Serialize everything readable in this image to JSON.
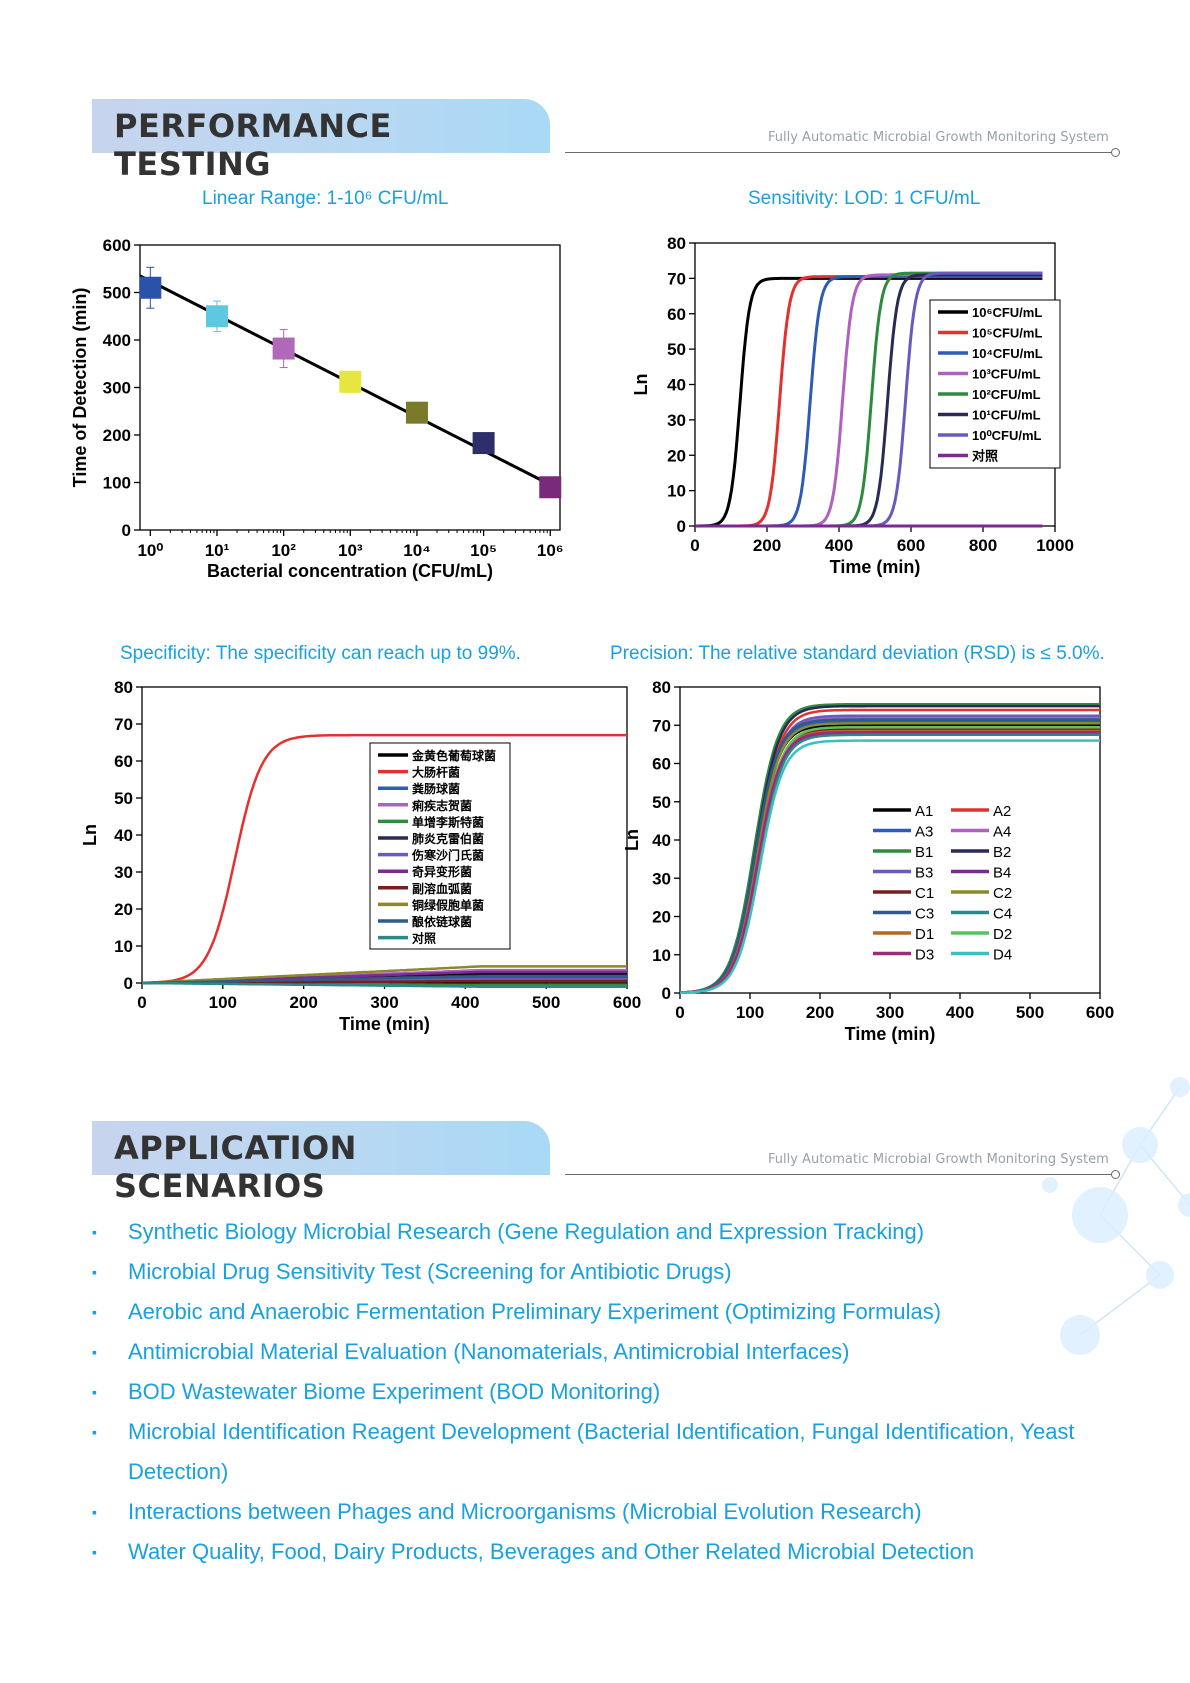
{
  "sections": {
    "performance": {
      "title": "PERFORMANCE TESTING",
      "subtitle": "Fully Automatic Microbial Growth Monitoring System"
    },
    "application": {
      "title": "APPLICATION SCENARIOS",
      "subtitle": "Fully Automatic Microbial Growth Monitoring System"
    }
  },
  "chart_titles": {
    "linear": "Linear Range: 1-10⁶ CFU/mL",
    "sensitivity": "Sensitivity: LOD: 1 CFU/mL",
    "specificity": "Specificity: The specificity can reach up to 99%.",
    "precision": "Precision: The relative standard deviation (RSD) is ≤ 5.0%."
  },
  "applications": [
    "Synthetic Biology Microbial Research (Gene Regulation and Expression Tracking)",
    "Microbial Drug Sensitivity Test (Screening for Antibiotic Drugs)",
    "Aerobic and Anaerobic Fermentation Preliminary Experiment (Optimizing Formulas)",
    "Antimicrobial Material Evaluation (Nanomaterials, Antimicrobial Interfaces)",
    "BOD Wastewater Biome Experiment (BOD Monitoring)",
    "Microbial Identification Reagent Development (Bacterial Identification, Fungal Identification, Yeast Detection)",
    "Interactions between Phages and Microorganisms (Microbial Evolution Research)",
    "Water Quality, Food, Dairy Products, Beverages and Other Related Microbial Detection"
  ],
  "chart_data": [
    {
      "id": "linear",
      "type": "scatter",
      "xscale": "log",
      "xlabel": "Bacterial concentration (CFU/mL)",
      "ylabel": "Time of Detection (min)",
      "xlim": [
        0.7,
        1400000.0
      ],
      "ylim": [
        0,
        600
      ],
      "xticks": [
        "10⁰",
        "10¹",
        "10²",
        "10³",
        "10⁴",
        "10⁵",
        "10⁶"
      ],
      "yticks": [
        0,
        100,
        200,
        300,
        400,
        500,
        600
      ],
      "points": [
        {
          "x": 1,
          "y": 510,
          "err": 43,
          "color": "#2a52a8"
        },
        {
          "x": 10,
          "y": 450,
          "err": 32,
          "color": "#5ec8de"
        },
        {
          "x": 100,
          "y": 382,
          "err": 40,
          "color": "#b068b8"
        },
        {
          "x": 1000,
          "y": 312,
          "err": 22,
          "color": "#e6e640"
        },
        {
          "x": 10000,
          "y": 247,
          "err": 0,
          "color": "#7a7a2a"
        },
        {
          "x": 100000,
          "y": 183,
          "err": 0,
          "color": "#2e2e6a"
        },
        {
          "x": 1000000,
          "y": 90,
          "err": 0,
          "color": "#7a2a7a"
        }
      ],
      "fit": {
        "x": [
          0.7,
          1400000.0
        ],
        "y": [
          535,
          85
        ]
      }
    },
    {
      "id": "sensitivity",
      "type": "line",
      "xlabel": "Time (min)",
      "ylabel": "Ln",
      "xlim": [
        0,
        1000
      ],
      "ylim": [
        0,
        80
      ],
      "xticks": [
        0,
        200,
        400,
        600,
        800,
        1000
      ],
      "yticks": [
        0,
        10,
        20,
        30,
        40,
        50,
        60,
        70,
        80
      ],
      "legend": "right",
      "series": [
        {
          "name": "10⁶CFU/mL",
          "color": "#000000",
          "mid": 125,
          "plateau": 70
        },
        {
          "name": "10⁵CFU/mL",
          "color": "#e53030",
          "mid": 235,
          "plateau": 70.5
        },
        {
          "name": "10⁴CFU/mL",
          "color": "#2e5bb5",
          "mid": 320,
          "plateau": 70.5
        },
        {
          "name": "10³CFU/mL",
          "color": "#b060c0",
          "mid": 410,
          "plateau": 71
        },
        {
          "name": "10²CFU/mL",
          "color": "#2e8b3e",
          "mid": 490,
          "plateau": 71.5
        },
        {
          "name": "10¹CFU/mL",
          "color": "#2a2a55",
          "mid": 535,
          "plateau": 71
        },
        {
          "name": "10⁰CFU/mL",
          "color": "#6a5ac0",
          "mid": 585,
          "plateau": 71.5
        },
        {
          "name": "对照",
          "color": "#7a2a90",
          "mid": null,
          "plateau": 0
        }
      ]
    },
    {
      "id": "specificity",
      "type": "line",
      "xlabel": "Time (min)",
      "ylabel": "Ln",
      "xlim": [
        0,
        600
      ],
      "ylim": [
        0,
        80
      ],
      "xticks": [
        0,
        100,
        200,
        300,
        400,
        500,
        600
      ],
      "yticks": [
        0,
        10,
        20,
        30,
        40,
        50,
        60,
        70,
        80
      ],
      "legend": "center-right",
      "series": [
        {
          "name": "金黄色葡萄球菌",
          "color": "#000000",
          "end": 2.5
        },
        {
          "name": "大肠杆菌",
          "color": "#e53030",
          "mid": 115,
          "plateau": 67
        },
        {
          "name": "粪肠球菌",
          "color": "#2e5bb5",
          "end": 1.5
        },
        {
          "name": "痢疾志贺菌",
          "color": "#b060c0",
          "end": 3.5
        },
        {
          "name": "单增李斯特菌",
          "color": "#2e8b3e",
          "end": -0.5
        },
        {
          "name": "肺炎克雷伯菌",
          "color": "#2a2a55",
          "end": 2
        },
        {
          "name": "伤寒沙门氏菌",
          "color": "#6a5ac0",
          "end": 1
        },
        {
          "name": "奇异变形菌",
          "color": "#7a2a90",
          "end": 3
        },
        {
          "name": "副溶血弧菌",
          "color": "#7a1f1f",
          "end": 0.5
        },
        {
          "name": "铜绿假胞单菌",
          "color": "#8a8a2a",
          "end": 4.5
        },
        {
          "name": "酿依链球菌",
          "color": "#2e5b8a",
          "end": 1.8
        },
        {
          "name": "对照",
          "color": "#2a8a8a",
          "end": -1
        }
      ]
    },
    {
      "id": "precision",
      "type": "line",
      "xlabel": "Time (min)",
      "ylabel": "Ln",
      "xlim": [
        0,
        600
      ],
      "ylim": [
        0,
        80
      ],
      "xticks": [
        0,
        100,
        200,
        300,
        400,
        500,
        600
      ],
      "yticks": [
        0,
        10,
        20,
        30,
        40,
        50,
        60,
        70,
        80
      ],
      "legend": "center-right",
      "series": [
        {
          "name": "A1",
          "color": "#000000",
          "mid": 108,
          "plateau": 70
        },
        {
          "name": "A2",
          "color": "#e53030",
          "mid": 110,
          "plateau": 74
        },
        {
          "name": "A3",
          "color": "#2e5bb5",
          "mid": 107,
          "plateau": 71
        },
        {
          "name": "A4",
          "color": "#b060c0",
          "mid": 109,
          "plateau": 72
        },
        {
          "name": "B1",
          "color": "#2e8b3e",
          "mid": 106,
          "plateau": 75.5
        },
        {
          "name": "B2",
          "color": "#2a2a55",
          "mid": 108,
          "plateau": 75
        },
        {
          "name": "B3",
          "color": "#6a5ac0",
          "mid": 110,
          "plateau": 72.5
        },
        {
          "name": "B4",
          "color": "#7a2a90",
          "mid": 112,
          "plateau": 68
        },
        {
          "name": "C1",
          "color": "#7a1f1f",
          "mid": 111,
          "plateau": 69
        },
        {
          "name": "C2",
          "color": "#8a8a2a",
          "mid": 109,
          "plateau": 70.5
        },
        {
          "name": "C3",
          "color": "#2e5b8a",
          "mid": 107,
          "plateau": 71.5
        },
        {
          "name": "C4",
          "color": "#2a8a8a",
          "mid": 113,
          "plateau": 67.5
        },
        {
          "name": "D1",
          "color": "#b06a2a",
          "mid": 110,
          "plateau": 68.5
        },
        {
          "name": "D2",
          "color": "#5ac060",
          "mid": 112,
          "plateau": 69.5
        },
        {
          "name": "D3",
          "color": "#a02a7a",
          "mid": 111,
          "plateau": 68.2
        },
        {
          "name": "D4",
          "color": "#3ac0c0",
          "mid": 114,
          "plateau": 66
        }
      ]
    }
  ]
}
